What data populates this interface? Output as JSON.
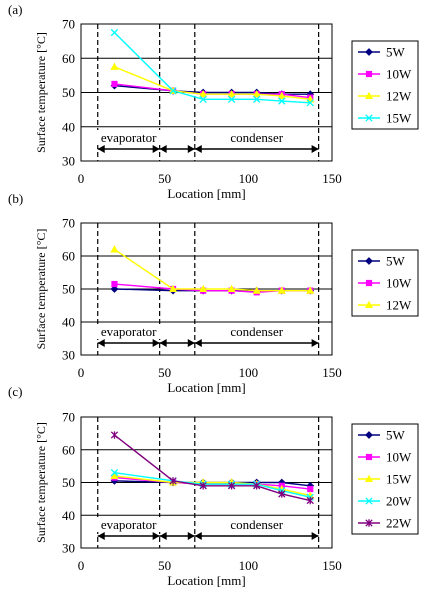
{
  "chart_data": [
    {
      "panel_label": "(a)",
      "type": "line",
      "xlabel": "Location [mm]",
      "ylabel": "Surface temperature [°C]",
      "xlim": [
        0,
        150
      ],
      "ylim": [
        30,
        70
      ],
      "xticks": [
        "0",
        "50",
        "100",
        "150"
      ],
      "yticks": [
        "30",
        "40",
        "50",
        "60",
        "70"
      ],
      "grid": "horizontal",
      "legend_placement": "right",
      "region_labels": [
        "evaporator",
        "condenser"
      ],
      "x": [
        20,
        55,
        73,
        90,
        105,
        120,
        137
      ],
      "series": [
        {
          "name": "5W",
          "color": "#000080",
          "marker": "diamond",
          "values": [
            52,
            50.5,
            50,
            50,
            50,
            49.5,
            49.5
          ]
        },
        {
          "name": "10W",
          "color": "#ff00ff",
          "marker": "square",
          "values": [
            52.5,
            50.5,
            49.5,
            49.5,
            49.5,
            49.5,
            48.5
          ]
        },
        {
          "name": "12W",
          "color": "#ffff00",
          "marker": "triangle",
          "values": [
            57.5,
            50.5,
            49.5,
            49.5,
            49.5,
            49,
            48
          ]
        },
        {
          "name": "15W",
          "color": "#00ffff",
          "marker": "x",
          "values": [
            67.5,
            50.5,
            48,
            48,
            48,
            47.5,
            47
          ]
        }
      ]
    },
    {
      "panel_label": "(b)",
      "type": "line",
      "xlabel": "Location [mm]",
      "ylabel": "Surface temperature [°C]",
      "xlim": [
        0,
        150
      ],
      "ylim": [
        30,
        70
      ],
      "xticks": [
        "0",
        "50",
        "100",
        "150"
      ],
      "yticks": [
        "30",
        "40",
        "50",
        "60",
        "70"
      ],
      "grid": "horizontal",
      "legend_placement": "right",
      "region_labels": [
        "evaporator",
        "condenser"
      ],
      "x": [
        20,
        55,
        73,
        90,
        105,
        120,
        137
      ],
      "series": [
        {
          "name": "5W",
          "color": "#000080",
          "marker": "diamond",
          "values": [
            50,
            49.5,
            49.5,
            49.5,
            49.5,
            49.5,
            49.5
          ]
        },
        {
          "name": "10W",
          "color": "#ff00ff",
          "marker": "square",
          "values": [
            51.5,
            50,
            49.5,
            49.5,
            49,
            49.5,
            49.5
          ]
        },
        {
          "name": "12W",
          "color": "#ffff00",
          "marker": "triangle",
          "values": [
            62,
            50,
            50,
            50,
            49.5,
            49.5,
            49.5
          ]
        }
      ]
    },
    {
      "panel_label": "(c)",
      "type": "line",
      "xlabel": "Location [mm]",
      "ylabel": "Surface temperature [°C]",
      "xlim": [
        0,
        150
      ],
      "ylim": [
        30,
        70
      ],
      "xticks": [
        "0",
        "50",
        "100",
        "150"
      ],
      "yticks": [
        "30",
        "40",
        "50",
        "60",
        "70"
      ],
      "grid": "horizontal",
      "legend_placement": "right",
      "region_labels": [
        "evaporator",
        "condenser"
      ],
      "x": [
        20,
        55,
        73,
        90,
        105,
        120,
        137
      ],
      "series": [
        {
          "name": "5W",
          "color": "#000080",
          "marker": "diamond",
          "values": [
            50.5,
            50,
            50,
            50,
            50,
            50,
            49
          ]
        },
        {
          "name": "10W",
          "color": "#ff00ff",
          "marker": "square",
          "values": [
            51.5,
            50,
            49.5,
            49.5,
            49.5,
            49,
            48
          ]
        },
        {
          "name": "15W",
          "color": "#ffff00",
          "marker": "triangle",
          "values": [
            52,
            50,
            50,
            50,
            49.5,
            48,
            46
          ]
        },
        {
          "name": "20W",
          "color": "#00ffff",
          "marker": "x",
          "values": [
            53,
            50.5,
            49.5,
            49.5,
            49.5,
            47.5,
            45.5
          ]
        },
        {
          "name": "22W",
          "color": "#800080",
          "marker": "star",
          "values": [
            64.5,
            50.5,
            49,
            49,
            49,
            46.5,
            44.5
          ]
        }
      ]
    }
  ]
}
